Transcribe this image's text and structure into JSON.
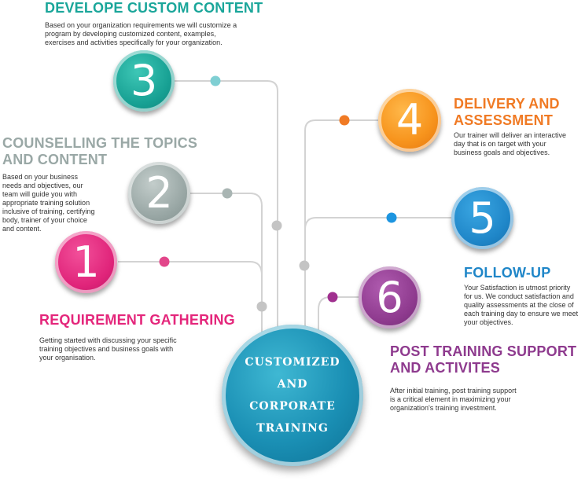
{
  "colors": {
    "step1": "#e4267b",
    "step2": "#9aa8a6",
    "step3": "#1aa69a",
    "step4": "#f7941d",
    "step5": "#1f86c8",
    "step6": "#8e3a8e",
    "center": "#1a8fb4",
    "line": "#d3d3d3"
  },
  "center": {
    "lines": [
      "CUSTOMIZED",
      "AND",
      "CORPORATE",
      "TRAINING"
    ]
  },
  "steps": [
    {
      "number": "1",
      "title_lines": [
        "REQUIREMENT GATHERING"
      ],
      "desc_lines": [
        "Getting started with discussing your specific",
        "training objectives and business goals with",
        "your organisation."
      ]
    },
    {
      "number": "2",
      "title_lines": [
        "COUNSELLING THE TOPICS",
        "AND CONTENT"
      ],
      "desc_lines": [
        "Based on your business",
        "needs and objectives, our",
        "team will guide you with",
        "appropriate training solution",
        "inclusive of training, certifying",
        "body, trainer of your choice",
        "and content."
      ]
    },
    {
      "number": "3",
      "title_lines": [
        "DEVELOPE CUSTOM CONTENT"
      ],
      "desc_lines": [
        "Based on your organization requirements we will customize a",
        "program by developing customized content, examples,",
        "exercises and activities specifically for your organization."
      ]
    },
    {
      "number": "4",
      "title_lines": [
        "DELIVERY AND",
        "ASSESSMENT"
      ],
      "desc_lines": [
        "Our trainer will deliver an interactive",
        "day that is on target with your",
        "business goals and objectives."
      ]
    },
    {
      "number": "5",
      "title_lines": [
        "FOLLOW-UP"
      ],
      "desc_lines": [
        "Your Satisfaction is utmost priority",
        "for us. We conduct satisfaction and",
        "quality assessments at the close of",
        "each training day to ensure we meet",
        "your objectives."
      ]
    },
    {
      "number": "6",
      "title_lines": [
        "POST TRAINING SUPPORT",
        "AND ACTIVITES"
      ],
      "desc_lines": [
        "After initial training, post training support",
        "is a critical element in maximizing your",
        "organization's training investment."
      ]
    }
  ]
}
